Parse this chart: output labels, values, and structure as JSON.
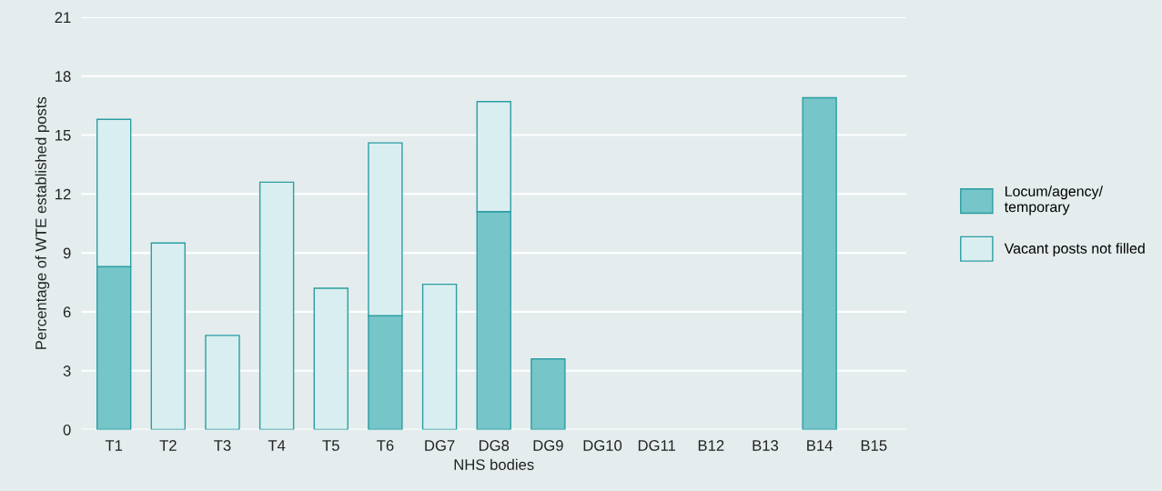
{
  "chart_data": {
    "type": "bar",
    "stacked": true,
    "xlabel": "NHS bodies",
    "ylabel": "Percentage of WTE established posts",
    "categories": [
      "T1",
      "T2",
      "T3",
      "T4",
      "T5",
      "T6",
      "DG7",
      "DG8",
      "DG9",
      "DG10",
      "DG11",
      "B12",
      "B13",
      "B14",
      "B15"
    ],
    "series": [
      {
        "name": "Locum/agency/\ntemporary",
        "color": "#76c5c8",
        "values": [
          8.3,
          0,
          0,
          0,
          0,
          5.8,
          0,
          11.1,
          3.6,
          0,
          0,
          0,
          0,
          16.9,
          0
        ]
      },
      {
        "name": "Vacant posts not filled",
        "color": "#d9eef0",
        "values": [
          7.5,
          9.5,
          4.8,
          12.6,
          7.2,
          8.8,
          7.4,
          5.6,
          0,
          0,
          0,
          0,
          0,
          0,
          0
        ]
      }
    ],
    "ylim": [
      0,
      21
    ],
    "yticks": [
      0,
      3,
      6,
      9,
      12,
      15,
      18,
      21
    ],
    "grid": "y",
    "legend": "right"
  }
}
